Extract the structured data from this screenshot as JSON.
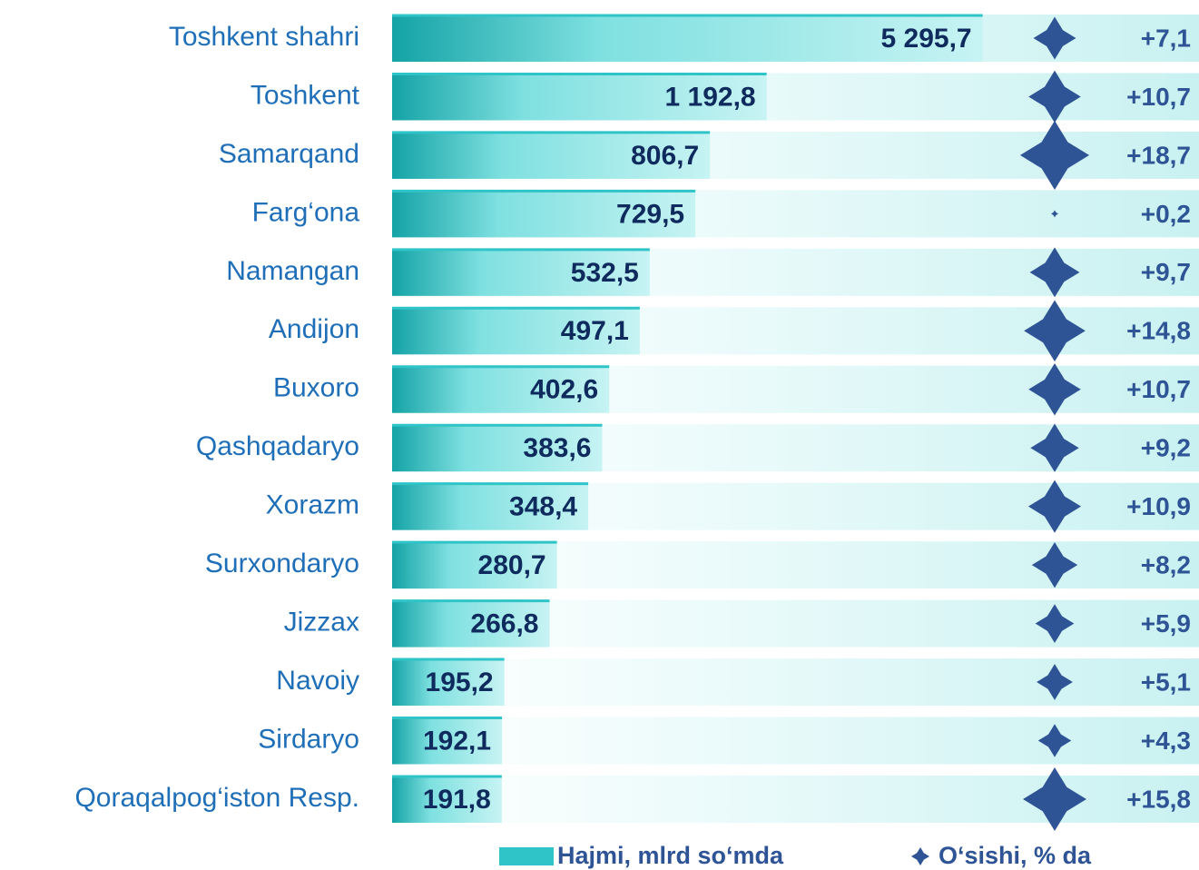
{
  "chart_data": {
    "type": "bar",
    "log_scale": true,
    "xlim": [
      90,
      22000
    ],
    "categories": [
      "Toshkent shahri",
      "Toshkent",
      "Samarqand",
      "Farg‘ona",
      "Namangan",
      "Andijon",
      "Buxoro",
      "Qashqadaryo",
      "Xorazm",
      "Surxondaryo",
      "Jizzax",
      "Navoiy",
      "Sirdaryo",
      "Qoraqalpog‘iston Resp."
    ],
    "series": [
      {
        "name": "Hajmi, mlrd so‘mda",
        "color": "#2ec4c8",
        "values": [
          5295.7,
          1192.8,
          806.7,
          729.5,
          532.5,
          497.1,
          402.6,
          383.6,
          348.4,
          280.7,
          266.8,
          195.2,
          192.1,
          191.8
        ],
        "value_labels": [
          "5 295,7",
          "1 192,8",
          "806,7",
          "729,5",
          "532,5",
          "497,1",
          "402,6",
          "383,6",
          "348,4",
          "280,7",
          "266,8",
          "195,2",
          "192,1",
          "191,8"
        ]
      },
      {
        "name": "O‘sishi, % da",
        "color": "#2e5496",
        "marker": "star",
        "values": [
          7.1,
          10.7,
          18.7,
          0.2,
          9.7,
          14.8,
          10.7,
          9.2,
          10.9,
          8.2,
          5.9,
          5.1,
          4.3,
          15.8
        ],
        "value_labels": [
          "+7,1",
          "+10,7",
          "+18,7",
          "+0,2",
          "+9,7",
          "+14,8",
          "+10,7",
          "+9,2",
          "+10,9",
          "+8,2",
          "+5,9",
          "+5,1",
          "+4,3",
          "+15,8"
        ]
      }
    ]
  }
}
